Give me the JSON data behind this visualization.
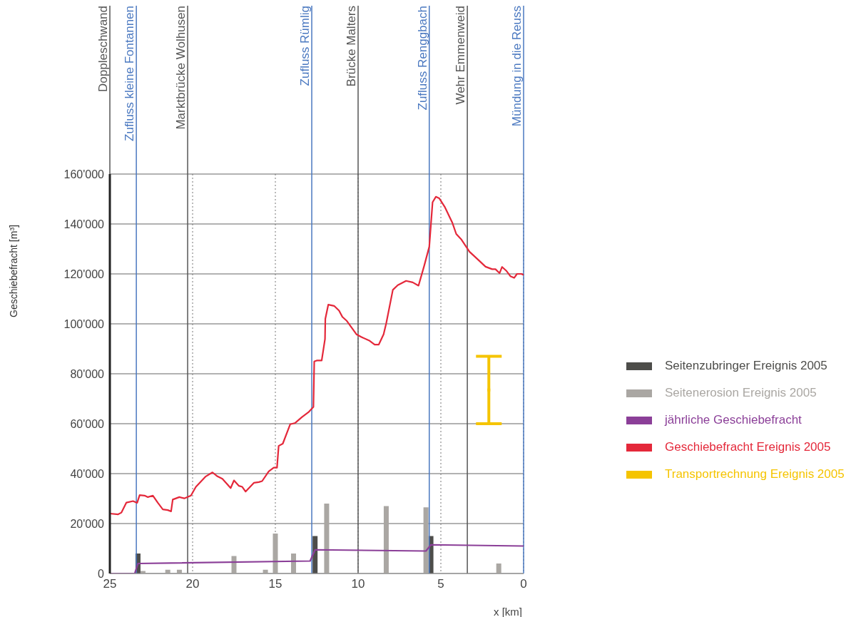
{
  "chart_data": {
    "type": "line",
    "ylabel": "Geschiebefracht [m³]",
    "xlabel": "x [km]",
    "xlim": [
      25,
      0
    ],
    "xticks": [
      25,
      20,
      15,
      10,
      5,
      0
    ],
    "ylim": [
      0,
      160000
    ],
    "yticks": [
      {
        "value": 0,
        "label": "0"
      },
      {
        "value": 20000,
        "label": "20'000"
      },
      {
        "value": 40000,
        "label": "40'000"
      },
      {
        "value": 60000,
        "label": "60'000"
      },
      {
        "value": 80000,
        "label": "80'000"
      },
      {
        "value": 100000,
        "label": "100'000"
      },
      {
        "value": 120000,
        "label": "120'000"
      },
      {
        "value": 140000,
        "label": "140'000"
      },
      {
        "value": 160000,
        "label": "160'000"
      }
    ],
    "grid": true,
    "legend": "right",
    "marker": "none",
    "series": [
      {
        "name": "Seitenzubringer Ereignis 2005",
        "type": "bar",
        "color": "#4d4d4a",
        "x": [
          23.3,
          12.6,
          5.6
        ],
        "values": [
          8000,
          15000,
          15000
        ]
      },
      {
        "name": "Seitenerosion Ereignis 2005",
        "type": "bar",
        "color": "#aaa7a3",
        "x": [
          23.0,
          21.5,
          20.8,
          17.5,
          15.6,
          15.0,
          13.9,
          11.9,
          8.3,
          5.9,
          1.5
        ],
        "values": [
          1000,
          1500,
          1500,
          7000,
          1500,
          16000,
          8000,
          28000,
          27000,
          26500,
          4000
        ]
      },
      {
        "name": "jährliche Geschiebefracht",
        "color": "#8b3f98",
        "x": [
          25,
          23.5,
          23.3,
          12.9,
          12.6,
          5.9,
          5.6,
          0
        ],
        "values": [
          0,
          0,
          4000,
          5000,
          9500,
          9000,
          11500,
          11000
        ]
      },
      {
        "name": "Geschiebefracht Ereignis 2005",
        "color": "#e4283a",
        "x": [
          25.0,
          24.5,
          24.3,
          24.0,
          23.6,
          23.35,
          23.2,
          22.9,
          22.7,
          22.4,
          22.1,
          21.8,
          21.5,
          21.3,
          21.2,
          20.8,
          20.5,
          20.1,
          19.8,
          19.2,
          18.8,
          18.5,
          18.2,
          17.7,
          17.5,
          17.2,
          17.0,
          16.8,
          16.3,
          16.0,
          15.8,
          15.4,
          15.1,
          14.9,
          14.8,
          14.55,
          14.1,
          13.8,
          13.4,
          13.0,
          12.7,
          12.65,
          12.5,
          12.2,
          12.0,
          11.98,
          11.8,
          11.45,
          11.15,
          10.95,
          10.7,
          10.1,
          9.8,
          9.3,
          9.0,
          8.75,
          8.46,
          8.3,
          7.9,
          7.6,
          7.1,
          6.7,
          6.35,
          6.0,
          5.7,
          5.5,
          5.3,
          5.1,
          4.77,
          4.3,
          4.07,
          3.75,
          3.27,
          2.7,
          2.3,
          1.9,
          1.7,
          1.45,
          1.3,
          1.05,
          0.8,
          0.57,
          0.4,
          0.13,
          0
        ],
        "values": [
          24000,
          23700,
          24400,
          28400,
          29000,
          28300,
          31400,
          31200,
          30600,
          31200,
          28300,
          25700,
          25400,
          24900,
          29600,
          30600,
          30100,
          31200,
          34700,
          38900,
          40500,
          38900,
          37900,
          34200,
          37300,
          35100,
          34700,
          32800,
          36300,
          36600,
          37000,
          40900,
          42400,
          42400,
          51100,
          52000,
          59800,
          60300,
          62600,
          64600,
          66700,
          84900,
          85300,
          85300,
          93900,
          102000,
          107700,
          107200,
          105300,
          102800,
          101300,
          95800,
          94700,
          93200,
          91700,
          91700,
          95800,
          100200,
          113600,
          115500,
          117200,
          116600,
          115300,
          123400,
          130900,
          148700,
          150900,
          150300,
          146900,
          140400,
          136000,
          133700,
          128900,
          125400,
          122900,
          121900,
          121900,
          120300,
          122800,
          121300,
          119100,
          118400,
          120000,
          120000,
          119600
        ]
      },
      {
        "name": "Transportrechnung Ereignis 2005",
        "type": "scatter",
        "color": "#f5c400",
        "x": [
          2.1
        ],
        "values": [
          73500
        ],
        "errors": [
          13500
        ],
        "marker": "square"
      }
    ],
    "ref_lines": [
      {
        "axis": "x",
        "value": 25,
        "label": "Doppleschwand",
        "color": "#555555"
      },
      {
        "axis": "x",
        "value": 23.4,
        "label": "Zufluss kleine Fontannen",
        "color": "#4a78c0"
      },
      {
        "axis": "x",
        "value": 20.3,
        "label": "Marktbrücke Wolhusen",
        "color": "#555555"
      },
      {
        "axis": "x",
        "value": 12.8,
        "label": "Zufluss Rümlig",
        "color": "#4a78c0"
      },
      {
        "axis": "x",
        "value": 10,
        "label": "Brücke Malters",
        "color": "#555555"
      },
      {
        "axis": "x",
        "value": 5.7,
        "label": "Zufluss Renggbach",
        "color": "#4a78c0"
      },
      {
        "axis": "x",
        "value": 3.4,
        "label": "Wehr Emmenweid",
        "color": "#555555"
      },
      {
        "axis": "x",
        "value": 0,
        "label": "Mündung in die Reuss",
        "color": "#4a78c0"
      }
    ]
  }
}
